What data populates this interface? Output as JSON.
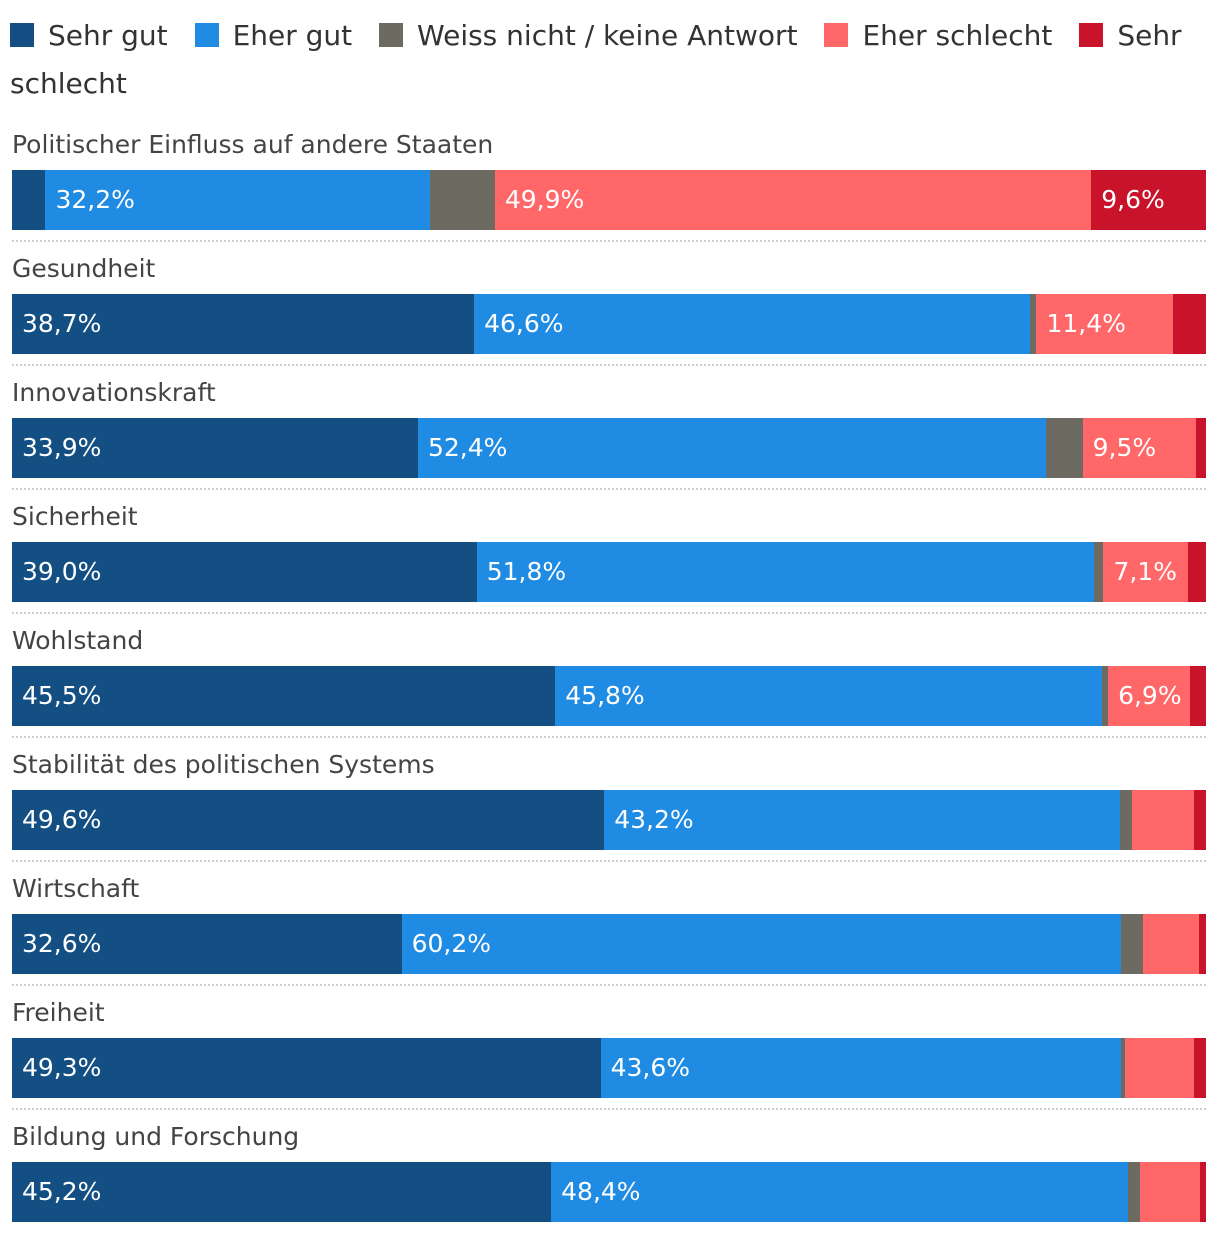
{
  "chart_data": {
    "type": "bar",
    "orientation": "horizontal",
    "stacked": true,
    "legend_position": "top",
    "series": [
      {
        "name": "Sehr gut",
        "color": "#134f83",
        "values": [
          2.8,
          38.7,
          33.9,
          39.0,
          45.5,
          49.6,
          32.6,
          49.3,
          45.2
        ]
      },
      {
        "name": "Eher gut",
        "color": "#208be3",
        "values": [
          32.2,
          46.6,
          52.4,
          51.8,
          45.8,
          43.2,
          60.2,
          43.6,
          48.4
        ]
      },
      {
        "name": "Weiss nicht / keine Antwort",
        "color": "#6d6a61",
        "values": [
          5.4,
          0.5,
          3.1,
          0.8,
          0.5,
          1.0,
          1.8,
          0.3,
          1.0
        ]
      },
      {
        "name": "Eher schlecht",
        "color": "#ff6768",
        "values": [
          49.9,
          11.4,
          9.5,
          7.1,
          6.9,
          5.2,
          4.7,
          5.8,
          5.0
        ]
      },
      {
        "name": "Sehr schlecht",
        "color": "#c9132a",
        "values": [
          9.6,
          2.8,
          0.8,
          1.5,
          1.3,
          1.0,
          0.6,
          1.0,
          0.5
        ]
      }
    ],
    "categories": [
      "Politischer Einfluss auf andere Staaten",
      "Gesundheit",
      "Innovationskraft",
      "Sicherheit",
      "Wohlstand",
      "Stabilität des politischen Systems",
      "Wirtschaft",
      "Freiheit",
      "Bildung und Forschung"
    ],
    "data_labels": [
      [
        "",
        "32,2%",
        "",
        "49,9%",
        "9,6%"
      ],
      [
        "38,7%",
        "46,6%",
        "",
        "11,4%",
        ""
      ],
      [
        "33,9%",
        "52,4%",
        "",
        "9,5%",
        ""
      ],
      [
        "39,0%",
        "51,8%",
        "",
        "7,1%",
        ""
      ],
      [
        "45,5%",
        "45,8%",
        "",
        "6,9%",
        ""
      ],
      [
        "49,6%",
        "43,2%",
        "",
        "",
        ""
      ],
      [
        "32,6%",
        "60,2%",
        "",
        "",
        ""
      ],
      [
        "49,3%",
        "43,6%",
        "",
        "",
        ""
      ],
      [
        "45,2%",
        "48,4%",
        "",
        "",
        ""
      ]
    ],
    "xlim": [
      0,
      100
    ],
    "title": "",
    "xlabel": "",
    "ylabel": ""
  }
}
